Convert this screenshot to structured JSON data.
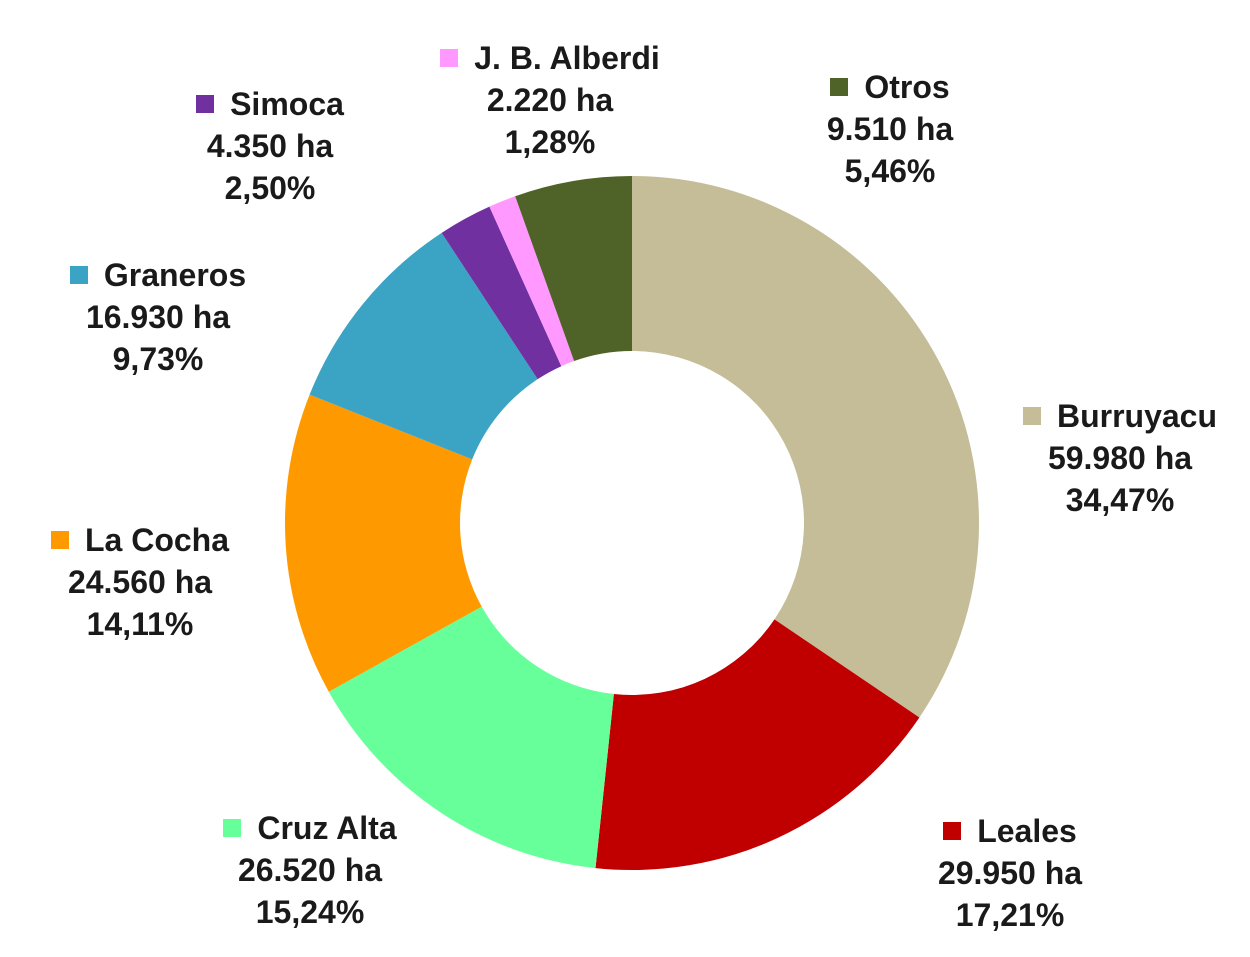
{
  "chart_data": {
    "type": "pie",
    "subtype": "donut",
    "title": "",
    "legend": "none",
    "slices": [
      {
        "name": "Burruyacu",
        "value": 59980,
        "value_label": "59.980 ha",
        "percent": 34.47,
        "percent_label": "34,47%",
        "color": "#c4bd97"
      },
      {
        "name": "Leales",
        "value": 29950,
        "value_label": "29.950 ha",
        "percent": 17.21,
        "percent_label": "17,21%",
        "color": "#c00000"
      },
      {
        "name": "Cruz Alta",
        "value": 26520,
        "value_label": "26.520 ha",
        "percent": 15.24,
        "percent_label": "15,24%",
        "color": "#66ff99"
      },
      {
        "name": "La Cocha",
        "value": 24560,
        "value_label": "24.560 ha",
        "percent": 14.11,
        "percent_label": "14,11%",
        "color": "#ff9900"
      },
      {
        "name": "Graneros",
        "value": 16930,
        "value_label": "16.930 ha",
        "percent": 9.73,
        "percent_label": "9,73%",
        "color": "#3ba3c3"
      },
      {
        "name": "Simoca",
        "value": 4350,
        "value_label": "4.350 ha",
        "percent": 2.5,
        "percent_label": "2,50%",
        "color": "#7030a0"
      },
      {
        "name": "J. B. Alberdi",
        "value": 2220,
        "value_label": "2.220 ha",
        "percent": 1.28,
        "percent_label": "1,28%",
        "color": "#ff99ff"
      },
      {
        "name": "Otros",
        "value": 9510,
        "value_label": "9.510 ha",
        "percent": 5.46,
        "percent_label": "5,46%",
        "color": "#4f6228"
      }
    ]
  }
}
